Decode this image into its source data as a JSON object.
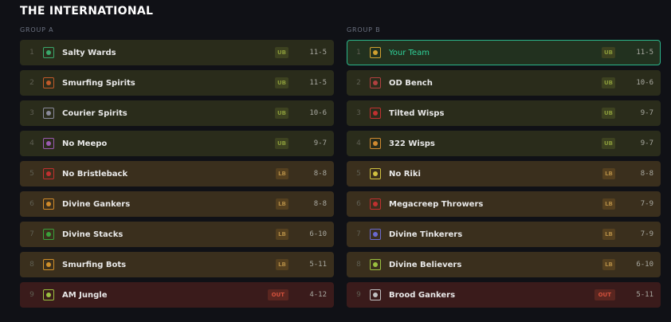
{
  "header": {
    "title": "THE INTERNATIONAL"
  },
  "groups": [
    {
      "label": "GROUP A",
      "rows": [
        {
          "rank": "1",
          "name": "Salty Wards",
          "tag": "UB",
          "record": "11-5"
        },
        {
          "rank": "2",
          "name": "Smurfing Spirits",
          "tag": "UB",
          "record": "11-5"
        },
        {
          "rank": "3",
          "name": "Courier Spirits",
          "tag": "UB",
          "record": "10-6"
        },
        {
          "rank": "4",
          "name": "No Meepo",
          "tag": "UB",
          "record": "9-7"
        },
        {
          "rank": "5",
          "name": "No Bristleback",
          "tag": "LB",
          "record": "8-8"
        },
        {
          "rank": "6",
          "name": "Divine Gankers",
          "tag": "LB",
          "record": "8-8"
        },
        {
          "rank": "7",
          "name": "Divine Stacks",
          "tag": "LB",
          "record": "6-10"
        },
        {
          "rank": "8",
          "name": "Smurfing Bots",
          "tag": "LB",
          "record": "5-11"
        },
        {
          "rank": "9",
          "name": "AM Jungle",
          "tag": "OUT",
          "record": "4-12"
        }
      ]
    },
    {
      "label": "GROUP B",
      "rows": [
        {
          "rank": "1",
          "name": "Your Team",
          "tag": "UB",
          "record": "11-5"
        },
        {
          "rank": "2",
          "name": "OD Bench",
          "tag": "UB",
          "record": "10-6"
        },
        {
          "rank": "3",
          "name": "Tilted Wisps",
          "tag": "UB",
          "record": "9-7"
        },
        {
          "rank": "4",
          "name": "322 Wisps",
          "tag": "UB",
          "record": "9-7"
        },
        {
          "rank": "5",
          "name": "No Riki",
          "tag": "LB",
          "record": "8-8"
        },
        {
          "rank": "6",
          "name": "Megacreep Throwers",
          "tag": "LB",
          "record": "7-9"
        },
        {
          "rank": "7",
          "name": "Divine Tinkerers",
          "tag": "LB",
          "record": "7-9"
        },
        {
          "rank": "8",
          "name": "Divine Believers",
          "tag": "LB",
          "record": "6-10"
        },
        {
          "rank": "9",
          "name": "Brood Gankers",
          "tag": "OUT",
          "record": "5-11"
        }
      ]
    }
  ]
}
